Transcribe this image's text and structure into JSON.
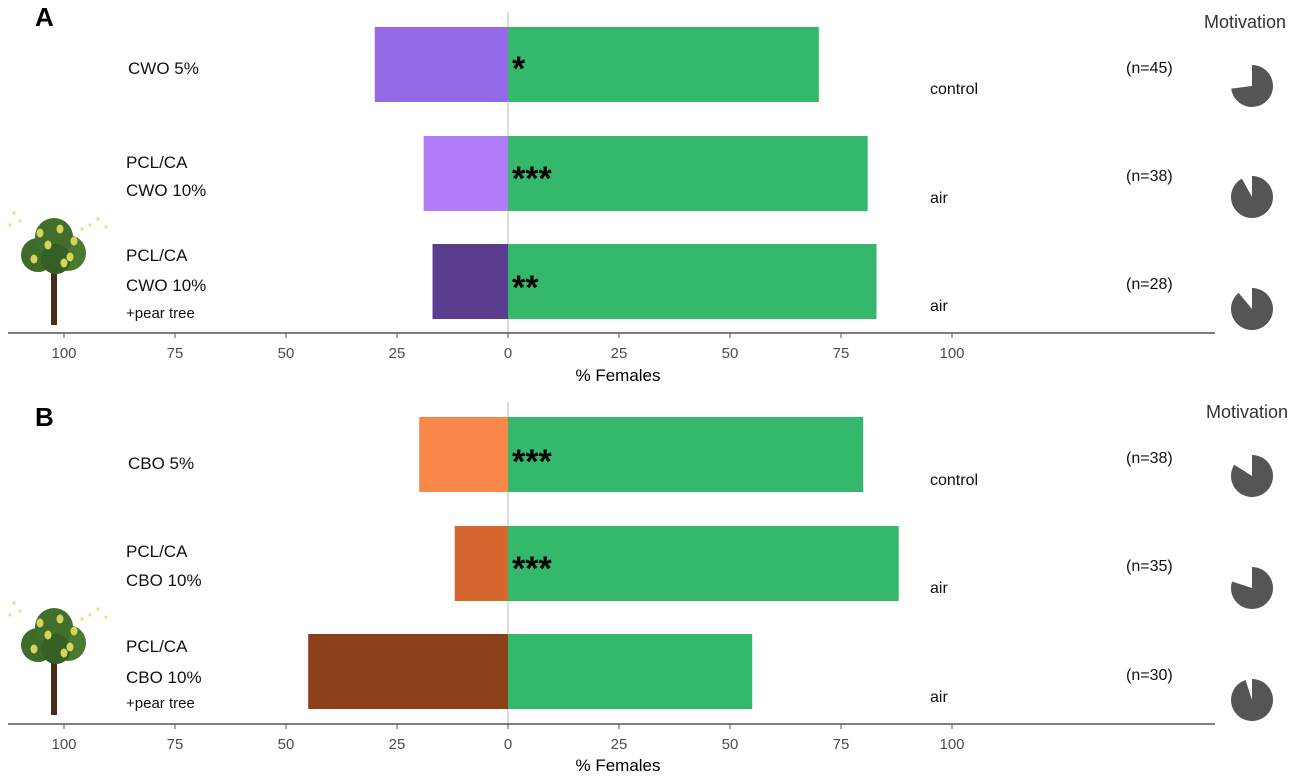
{
  "chart_data": [
    {
      "panel": "A",
      "type": "bar",
      "orientation": "horizontal-diverging",
      "xlabel": "% Females",
      "xlim": [
        -100,
        100
      ],
      "tick_labels": [
        "100",
        "75",
        "50",
        "25",
        "0",
        "25",
        "50",
        "75",
        "100"
      ],
      "motivation_title": "Motivation",
      "series": [
        {
          "name": "treatment"
        },
        {
          "name": "alternative"
        }
      ],
      "categories": [
        {
          "line1": "CWO 5%",
          "line2": "",
          "line3": "",
          "tree": false,
          "treatment": 30,
          "alternative": 70,
          "alt_label": "control",
          "stars": "*",
          "n": "(n=45)",
          "motivation": 0.73,
          "color": "#9468e6"
        },
        {
          "line1": "PCL/CA",
          "line2": "CWO 10%",
          "line3": "",
          "tree": false,
          "treatment": 19,
          "alternative": 81,
          "alt_label": "air",
          "stars": "***",
          "n": "(n=38)",
          "motivation": 0.92,
          "color": "#b07cf8"
        },
        {
          "line1": "PCL/CA",
          "line2": "CWO 10%",
          "line3": "+pear tree",
          "tree": true,
          "treatment": 17,
          "alternative": 83,
          "alt_label": "air",
          "stars": "**",
          "n": "(n=28)",
          "motivation": 0.89,
          "color": "#5a3d8f"
        }
      ]
    },
    {
      "panel": "B",
      "type": "bar",
      "orientation": "horizontal-diverging",
      "xlabel": "% Females",
      "xlim": [
        -100,
        100
      ],
      "tick_labels": [
        "100",
        "75",
        "50",
        "25",
        "0",
        "25",
        "50",
        "75",
        "100"
      ],
      "motivation_title": "Motivation",
      "series": [
        {
          "name": "treatment"
        },
        {
          "name": "alternative"
        }
      ],
      "categories": [
        {
          "line1": "CBO 5%",
          "line2": "",
          "line3": "",
          "tree": false,
          "treatment": 20,
          "alternative": 80,
          "alt_label": "control",
          "stars": "***",
          "n": "(n=38)",
          "motivation": 0.84,
          "color": "#f9884a"
        },
        {
          "line1": "PCL/CA",
          "line2": "CBO 10%",
          "line3": "",
          "tree": false,
          "treatment": 12,
          "alternative": 88,
          "alt_label": "air",
          "stars": "***",
          "n": "(n=35)",
          "motivation": 0.8,
          "color": "#d6672f"
        },
        {
          "line1": "PCL/CA",
          "line2": "CBO 10%",
          "line3": "+pear tree",
          "tree": true,
          "treatment": 45,
          "alternative": 55,
          "alt_label": "air",
          "stars": "",
          "n": "(n=30)",
          "motivation": 0.95,
          "color": "#8b4019"
        }
      ]
    }
  ],
  "colors": {
    "alternative": "#34b86c",
    "axis": "#555555",
    "zero_line": "#bbbbbb",
    "pie": "#555555"
  },
  "icons": {
    "tree": "pear-tree-icon"
  }
}
